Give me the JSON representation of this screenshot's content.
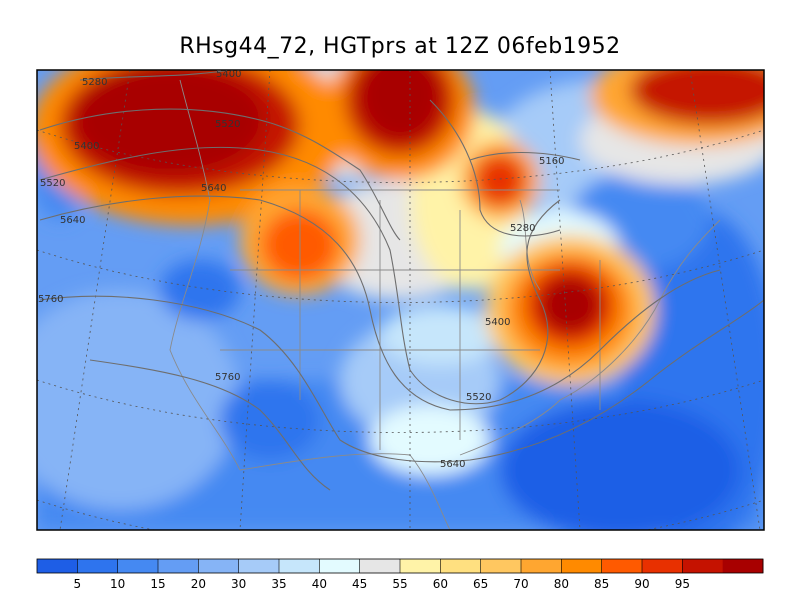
{
  "title": "RHsg44_72, HGTprs at 12Z  06feb1952",
  "colorbar": {
    "colors": [
      "#1e5ee6",
      "#2e74ee",
      "#4589f2",
      "#649df4",
      "#86b4f6",
      "#a6cbf8",
      "#c6e6fb",
      "#e3fbff",
      "#e6e6e6",
      "#fff3a8",
      "#ffe080",
      "#ffc760",
      "#ffa630",
      "#ff8a00",
      "#ff5a00",
      "#e83000",
      "#c51200",
      "#a80000"
    ],
    "labels": [
      "5",
      "10",
      "15",
      "20",
      "30",
      "35",
      "40",
      "45",
      "55",
      "60",
      "65",
      "70",
      "80",
      "85",
      "90",
      "95"
    ]
  },
  "contours": [
    {
      "label": "5280"
    },
    {
      "label": "5400"
    },
    {
      "label": "5400"
    },
    {
      "label": "5520"
    },
    {
      "label": "5520"
    },
    {
      "label": "5640"
    },
    {
      "label": "5640"
    },
    {
      "label": "5760"
    },
    {
      "label": "5760"
    },
    {
      "label": "5160"
    },
    {
      "label": "5280"
    },
    {
      "label": "5400"
    },
    {
      "label": "5520"
    },
    {
      "label": "5640"
    }
  ]
}
